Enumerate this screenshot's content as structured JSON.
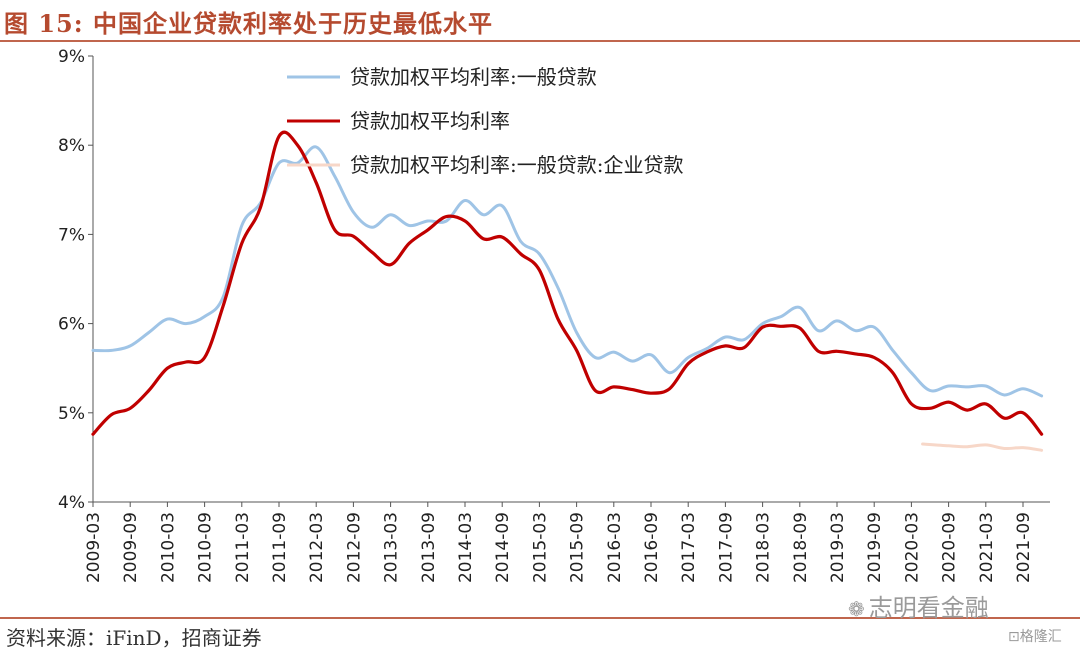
{
  "title": "图 15:  中国企业贷款利率处于历史最低水平",
  "source": "资料来源：iFinD，招商证券",
  "watermarks": {
    "main": "志明看金融",
    "main_icon": "wechat-icon",
    "sub": "格隆汇",
    "sub_icon": "gelonghui-logo-icon"
  },
  "colors": {
    "title": "#b54a2f",
    "rule": "#c0664d",
    "light_blue": "#9fc4e6",
    "dark_red": "#c00000",
    "peach": "#f7d7c8"
  },
  "chart_data": {
    "type": "line",
    "ylim": [
      4,
      9
    ],
    "yticks": [
      "4%",
      "5%",
      "6%",
      "7%",
      "8%",
      "9%"
    ],
    "xticks": [
      "2009-03",
      "2009-09",
      "2010-03",
      "2010-09",
      "2011-03",
      "2011-09",
      "2012-03",
      "2012-09",
      "2013-03",
      "2013-09",
      "2014-03",
      "2014-09",
      "2015-03",
      "2015-09",
      "2016-03",
      "2016-09",
      "2017-03",
      "2017-09",
      "2018-03",
      "2018-09",
      "2019-03",
      "2019-09",
      "2020-03",
      "2020-09",
      "2021-03",
      "2021-09"
    ],
    "legend": "top-left",
    "grid": false,
    "series": [
      {
        "name": "贷款加权平均利率:一般贷款",
        "color": "#9fc4e6",
        "points": [
          [
            0,
            5.7
          ],
          [
            0.5,
            5.7
          ],
          [
            1,
            5.75
          ],
          [
            1.5,
            5.9
          ],
          [
            2,
            6.05
          ],
          [
            2.5,
            6.0
          ],
          [
            3,
            6.08
          ],
          [
            3.5,
            6.3
          ],
          [
            4,
            7.1
          ],
          [
            4.5,
            7.35
          ],
          [
            5,
            7.8
          ],
          [
            5.5,
            7.8
          ],
          [
            6,
            7.98
          ],
          [
            6.5,
            7.65
          ],
          [
            7,
            7.25
          ],
          [
            7.5,
            7.08
          ],
          [
            8,
            7.22
          ],
          [
            8.5,
            7.1
          ],
          [
            9,
            7.15
          ],
          [
            9.5,
            7.15
          ],
          [
            10,
            7.38
          ],
          [
            10.5,
            7.22
          ],
          [
            11,
            7.32
          ],
          [
            11.5,
            6.92
          ],
          [
            12,
            6.78
          ],
          [
            12.5,
            6.4
          ],
          [
            13,
            5.9
          ],
          [
            13.5,
            5.62
          ],
          [
            14,
            5.68
          ],
          [
            14.5,
            5.58
          ],
          [
            15,
            5.65
          ],
          [
            15.5,
            5.45
          ],
          [
            16,
            5.62
          ],
          [
            16.5,
            5.72
          ],
          [
            17,
            5.85
          ],
          [
            17.5,
            5.82
          ],
          [
            18,
            6.0
          ],
          [
            18.5,
            6.08
          ],
          [
            19,
            6.18
          ],
          [
            19.5,
            5.92
          ],
          [
            20,
            6.03
          ],
          [
            20.5,
            5.92
          ],
          [
            21,
            5.96
          ],
          [
            21.5,
            5.7
          ],
          [
            22,
            5.45
          ],
          [
            22.5,
            5.25
          ],
          [
            23,
            5.3
          ],
          [
            23.5,
            5.29
          ],
          [
            24,
            5.3
          ],
          [
            24.5,
            5.2
          ],
          [
            25,
            5.27
          ],
          [
            25.5,
            5.19
          ]
        ]
      },
      {
        "name": "贷款加权平均利率",
        "color": "#c00000",
        "points": [
          [
            0,
            4.76
          ],
          [
            0.5,
            4.98
          ],
          [
            1,
            5.05
          ],
          [
            1.5,
            5.25
          ],
          [
            2,
            5.5
          ],
          [
            2.5,
            5.57
          ],
          [
            3,
            5.62
          ],
          [
            3.5,
            6.2
          ],
          [
            4,
            6.9
          ],
          [
            4.5,
            7.3
          ],
          [
            5,
            8.1
          ],
          [
            5.5,
            8.0
          ],
          [
            6,
            7.58
          ],
          [
            6.5,
            7.05
          ],
          [
            7,
            6.98
          ],
          [
            7.5,
            6.8
          ],
          [
            8,
            6.66
          ],
          [
            8.5,
            6.9
          ],
          [
            9,
            7.05
          ],
          [
            9.5,
            7.2
          ],
          [
            10,
            7.15
          ],
          [
            10.5,
            6.95
          ],
          [
            11,
            6.97
          ],
          [
            11.5,
            6.78
          ],
          [
            12,
            6.6
          ],
          [
            12.5,
            6.05
          ],
          [
            13,
            5.7
          ],
          [
            13.5,
            5.25
          ],
          [
            14,
            5.29
          ],
          [
            14.5,
            5.26
          ],
          [
            15,
            5.22
          ],
          [
            15.5,
            5.27
          ],
          [
            16,
            5.55
          ],
          [
            16.5,
            5.68
          ],
          [
            17,
            5.75
          ],
          [
            17.5,
            5.73
          ],
          [
            18,
            5.96
          ],
          [
            18.5,
            5.97
          ],
          [
            19,
            5.95
          ],
          [
            19.5,
            5.69
          ],
          [
            20,
            5.69
          ],
          [
            20.5,
            5.66
          ],
          [
            21,
            5.62
          ],
          [
            21.5,
            5.45
          ],
          [
            22,
            5.1
          ],
          [
            22.5,
            5.05
          ],
          [
            23,
            5.12
          ],
          [
            23.5,
            5.03
          ],
          [
            24,
            5.1
          ],
          [
            24.5,
            4.94
          ],
          [
            25,
            5.0
          ],
          [
            25.5,
            4.76
          ]
        ]
      },
      {
        "name": "贷款加权平均利率:一般贷款:企业贷款",
        "color": "#f7d7c8",
        "points": [
          [
            22.3,
            4.65
          ],
          [
            23,
            4.63
          ],
          [
            23.5,
            4.62
          ],
          [
            24,
            4.64
          ],
          [
            24.5,
            4.6
          ],
          [
            25,
            4.61
          ],
          [
            25.5,
            4.58
          ]
        ]
      }
    ]
  }
}
